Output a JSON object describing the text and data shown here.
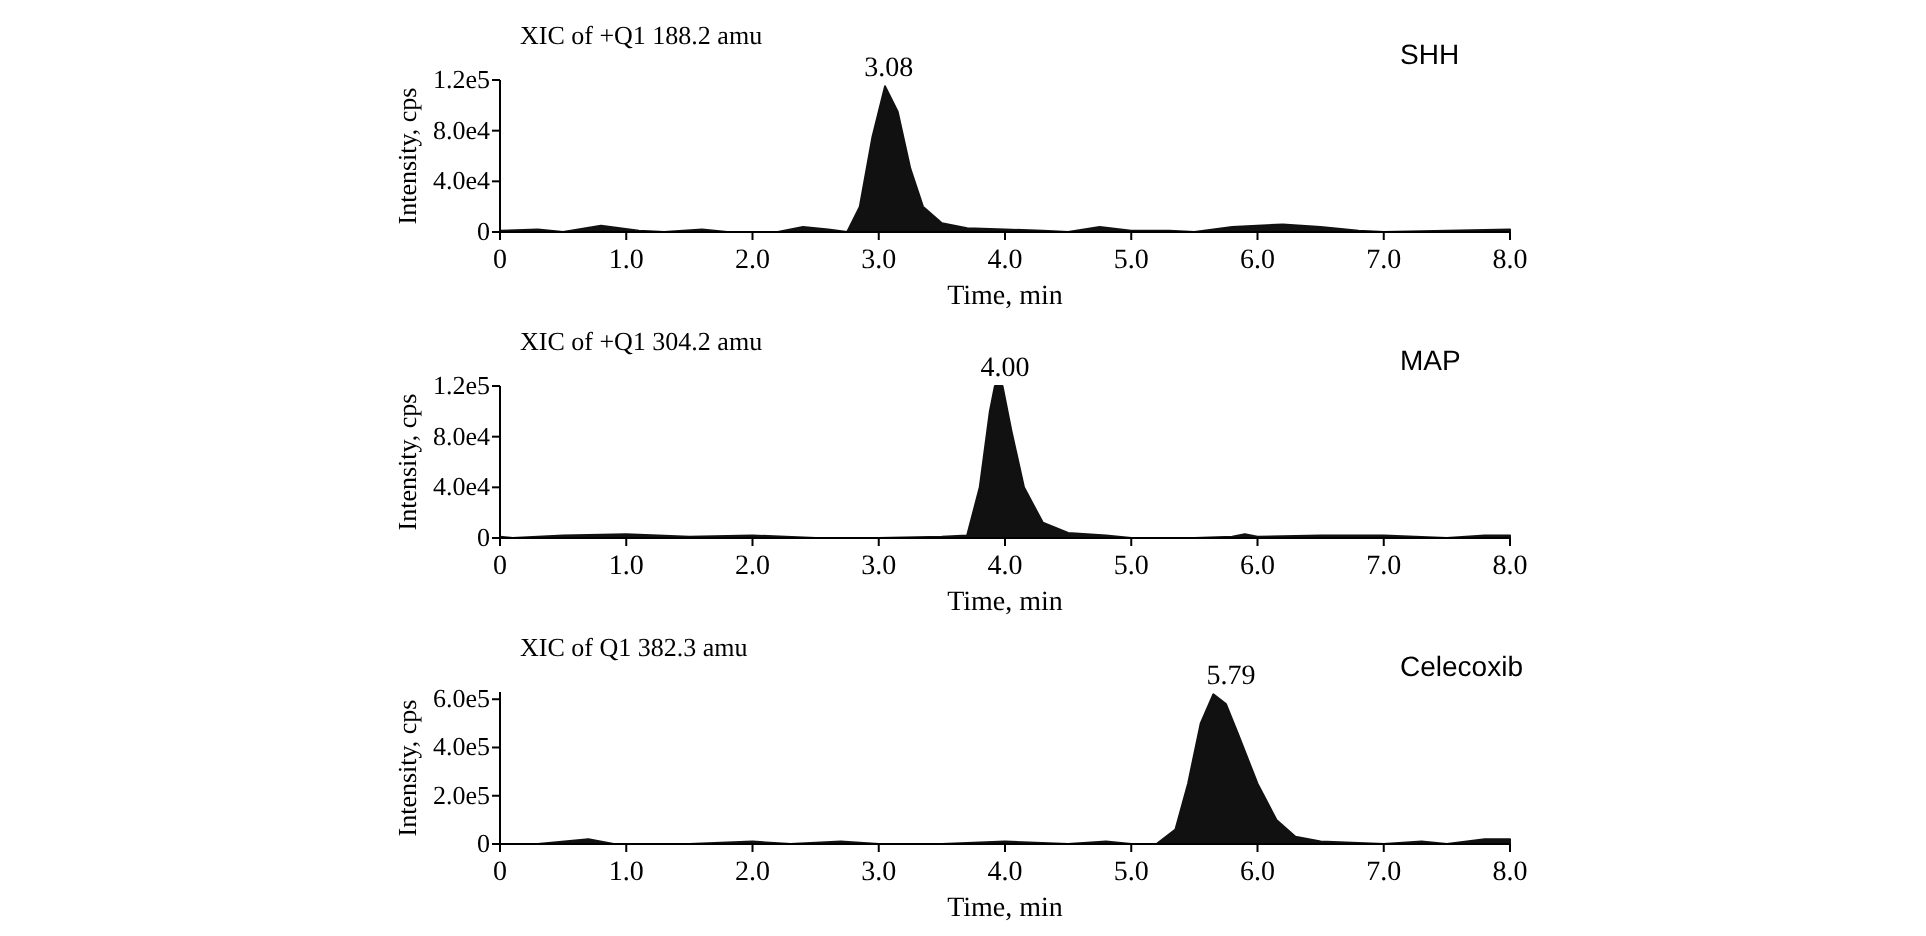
{
  "chart_data": [
    {
      "type": "area",
      "title": "XIC of +Q1 188.2 amu",
      "xlabel": "Time, min",
      "ylabel": "Intensity, cps",
      "annotations": [
        "SHH",
        {
          "text": "3.08",
          "x": 3.08,
          "y": 115000
        }
      ],
      "xlim": [
        0,
        8
      ],
      "ylim": [
        0,
        120000
      ],
      "xticks": [
        {
          "value": 0,
          "label": "0"
        },
        {
          "value": 1,
          "label": "1.0"
        },
        {
          "value": 2,
          "label": "2.0"
        },
        {
          "value": 3,
          "label": "3.0"
        },
        {
          "value": 4,
          "label": "4.0"
        },
        {
          "value": 5,
          "label": "5.0"
        },
        {
          "value": 6,
          "label": "6.0"
        },
        {
          "value": 7,
          "label": "7.0"
        },
        {
          "value": 8,
          "label": "8.0"
        }
      ],
      "yticks": [
        {
          "value": 0,
          "label": "0"
        },
        {
          "value": 40000,
          "label": "4.0e4"
        },
        {
          "value": 80000,
          "label": "8.0e4"
        },
        {
          "value": 120000,
          "label": "1.2e5"
        }
      ],
      "series": [
        {
          "color": "#111111",
          "x": [
            0,
            0.3,
            0.5,
            0.8,
            1.1,
            1.3,
            1.6,
            1.8,
            2.2,
            2.4,
            2.6,
            2.75,
            2.85,
            2.95,
            3.05,
            3.15,
            3.25,
            3.35,
            3.5,
            3.7,
            4.0,
            4.3,
            4.5,
            4.75,
            5.0,
            5.3,
            5.5,
            5.8,
            6.2,
            6.5,
            6.8,
            7.0,
            7.5,
            8.0
          ],
          "values": [
            1000,
            2000,
            0,
            5000,
            1000,
            0,
            2000,
            0,
            0,
            4000,
            2000,
            0,
            20000,
            75000,
            115000,
            95000,
            50000,
            20000,
            7000,
            3000,
            2000,
            1000,
            0,
            4000,
            1000,
            1000,
            0,
            4000,
            6000,
            4000,
            1000,
            0,
            1000,
            2000
          ]
        }
      ]
    },
    {
      "type": "area",
      "title": "XIC of +Q1 304.2 amu",
      "xlabel": "Time, min",
      "ylabel": "Intensity, cps",
      "annotations": [
        "MAP",
        {
          "text": "4.00",
          "x": 4.0,
          "y": 120000
        }
      ],
      "xlim": [
        0,
        8
      ],
      "ylim": [
        0,
        120000
      ],
      "xticks": [
        {
          "value": 0,
          "label": "0"
        },
        {
          "value": 1,
          "label": "1.0"
        },
        {
          "value": 2,
          "label": "2.0"
        },
        {
          "value": 3,
          "label": "3.0"
        },
        {
          "value": 4,
          "label": "4.0"
        },
        {
          "value": 5,
          "label": "5.0"
        },
        {
          "value": 6,
          "label": "6.0"
        },
        {
          "value": 7,
          "label": "7.0"
        },
        {
          "value": 8,
          "label": "8.0"
        }
      ],
      "yticks": [
        {
          "value": 0,
          "label": "0"
        },
        {
          "value": 40000,
          "label": "4.0e4"
        },
        {
          "value": 80000,
          "label": "8.0e4"
        },
        {
          "value": 120000,
          "label": "1.2e5"
        }
      ],
      "series": [
        {
          "color": "#111111",
          "x": [
            0,
            0.1,
            0.5,
            1.0,
            1.5,
            2.0,
            2.5,
            3.0,
            3.5,
            3.7,
            3.8,
            3.88,
            3.92,
            3.98,
            4.05,
            4.15,
            4.3,
            4.5,
            4.8,
            5.0,
            5.5,
            5.8,
            5.9,
            6.0,
            6.5,
            7.0,
            7.5,
            7.8,
            8.0
          ],
          "values": [
            1000,
            0,
            2000,
            3000,
            1000,
            2000,
            0,
            0,
            1000,
            2000,
            40000,
            100000,
            120000,
            120000,
            85000,
            40000,
            12000,
            4000,
            2000,
            0,
            0,
            1000,
            3000,
            1000,
            2000,
            2000,
            0,
            2000,
            2000
          ]
        }
      ]
    },
    {
      "type": "area",
      "title": "XIC of Q1 382.3 amu",
      "xlabel": "Time, min",
      "ylabel": "Intensity, cps",
      "annotations": [
        "Celecoxib",
        {
          "text": "5.79",
          "x": 5.79,
          "y": 620000
        }
      ],
      "xlim": [
        0,
        8
      ],
      "ylim": [
        0,
        630000
      ],
      "xticks": [
        {
          "value": 0,
          "label": "0"
        },
        {
          "value": 1,
          "label": "1.0"
        },
        {
          "value": 2,
          "label": "2.0"
        },
        {
          "value": 3,
          "label": "3.0"
        },
        {
          "value": 4,
          "label": "4.0"
        },
        {
          "value": 5,
          "label": "5.0"
        },
        {
          "value": 6,
          "label": "6.0"
        },
        {
          "value": 7,
          "label": "7.0"
        },
        {
          "value": 8,
          "label": "8.0"
        }
      ],
      "yticks": [
        {
          "value": 0,
          "label": "0"
        },
        {
          "value": 200000,
          "label": "2.0e5"
        },
        {
          "value": 400000,
          "label": "4.0e5"
        },
        {
          "value": 600000,
          "label": "6.0e5"
        }
      ],
      "series": [
        {
          "color": "#111111",
          "x": [
            0,
            0.3,
            0.7,
            0.9,
            1.5,
            2.0,
            2.3,
            2.7,
            3.0,
            3.5,
            4.0,
            4.5,
            4.8,
            5.0,
            5.2,
            5.35,
            5.45,
            5.55,
            5.65,
            5.75,
            5.85,
            6.0,
            6.15,
            6.3,
            6.5,
            7.0,
            7.3,
            7.5,
            7.8,
            8.0
          ],
          "values": [
            0,
            0,
            20000,
            0,
            0,
            10000,
            0,
            10000,
            0,
            0,
            10000,
            0,
            10000,
            0,
            0,
            60000,
            250000,
            500000,
            620000,
            580000,
            450000,
            250000,
            100000,
            30000,
            10000,
            0,
            10000,
            0,
            20000,
            20000
          ]
        }
      ]
    }
  ]
}
